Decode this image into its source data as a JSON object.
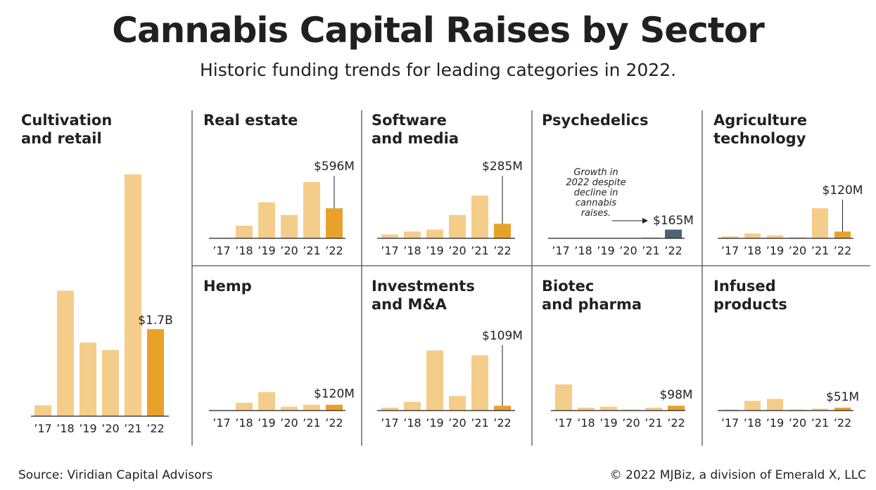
{
  "header": {
    "title": "Cannabis Capital Raises by Sector",
    "subtitle": "Historic funding trends for leading categories in 2022."
  },
  "footer": {
    "source": "Source: Viridian Capital Advisors",
    "credit": "© 2022 MJBiz, a division of Emerald X, LLC"
  },
  "colors": {
    "past_bar": "#f5cd8a",
    "current_bar": "#e8a22b",
    "psychedelics_bar": "#4d6472",
    "axis": "#231f20",
    "divider": "#555555"
  },
  "chart_data": [
    {
      "type": "bar",
      "title": "Cultivation and retail",
      "title_lines": [
        "Cultivation",
        "and retail"
      ],
      "categories": [
        "’17",
        "’18",
        "’19",
        "’20",
        "’21",
        "’22"
      ],
      "values": [
        0.13,
        1.5,
        0.88,
        0.79,
        2.89,
        1.04
      ],
      "value_label": "$1.7B",
      "highlight_index": 5
    },
    {
      "type": "bar",
      "title": "Real estate",
      "title_lines": [
        "Real estate"
      ],
      "categories": [
        "’17",
        "’18",
        "’19",
        "’20",
        "’21",
        "’22"
      ],
      "values": [
        0,
        0.13,
        0.37,
        0.24,
        0.58,
        0.31
      ],
      "value_label": "$596M",
      "highlight_index": 5
    },
    {
      "type": "bar",
      "title": "Software and media",
      "title_lines": [
        "Software",
        "and media"
      ],
      "categories": [
        "’17",
        "’18",
        "’19",
        "’20",
        "’21",
        "’22"
      ],
      "values": [
        0.04,
        0.07,
        0.09,
        0.24,
        0.44,
        0.15
      ],
      "value_label": "$285M",
      "highlight_index": 5
    },
    {
      "type": "bar",
      "title": "Psychedelics",
      "title_lines": [
        "Psychedelics"
      ],
      "categories": [
        "’17",
        "’18",
        "’19",
        "’20",
        "’21",
        "’22"
      ],
      "values": [
        0,
        0,
        0,
        0,
        0.01,
        0.09
      ],
      "value_label": "$165M",
      "highlight_index": 5,
      "note_lines": [
        "Growth in",
        "2022 despite",
        "decline in",
        "cannabis",
        "raises."
      ]
    },
    {
      "type": "bar",
      "title": "Agriculture technology",
      "title_lines": [
        "Agriculture",
        "technology"
      ],
      "categories": [
        "’17",
        "’18",
        "’19",
        "’20",
        "’21",
        "’22"
      ],
      "values": [
        0.02,
        0.05,
        0.03,
        0.01,
        0.31,
        0.07
      ],
      "value_label": "$120M",
      "highlight_index": 5
    },
    {
      "type": "bar",
      "title": "Hemp",
      "title_lines": [
        "Hemp"
      ],
      "categories": [
        "’17",
        "’18",
        "’19",
        "’20",
        "’21",
        "’22"
      ],
      "values": [
        0,
        0.08,
        0.19,
        0.04,
        0.06,
        0.06
      ],
      "value_label": "$120M",
      "highlight_index": 5
    },
    {
      "type": "bar",
      "title": "Investments and M&A",
      "title_lines": [
        "Investments",
        "and M&A"
      ],
      "categories": [
        "’17",
        "’18",
        "’19",
        "’20",
        "’21",
        "’22"
      ],
      "values": [
        0.03,
        0.09,
        0.62,
        0.15,
        0.57,
        0.05
      ],
      "value_label": "$109M",
      "highlight_index": 5
    },
    {
      "type": "bar",
      "title": "Biotec and pharma",
      "title_lines": [
        "Biotec",
        "and pharma"
      ],
      "categories": [
        "’17",
        "’18",
        "’19",
        "’20",
        "’21",
        "’22"
      ],
      "values": [
        0.27,
        0.03,
        0.04,
        0.01,
        0.03,
        0.05
      ],
      "value_label": "$98M",
      "highlight_index": 5
    },
    {
      "type": "bar",
      "title": "Infused products",
      "title_lines": [
        "Infused",
        "products"
      ],
      "categories": [
        "’17",
        "’18",
        "’19",
        "’20",
        "’21",
        "’22"
      ],
      "values": [
        0.01,
        0.1,
        0.12,
        0.01,
        0.02,
        0.03
      ],
      "value_label": "$51M",
      "highlight_index": 5
    }
  ]
}
